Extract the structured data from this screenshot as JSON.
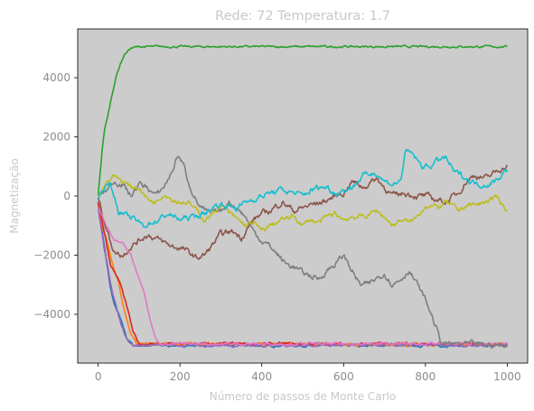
{
  "chart_data": {
    "type": "line",
    "title": "Rede: 72 Temperatura: 1.7",
    "xlabel": "Número de passos de Monte Carlo",
    "ylabel": "Magnetização",
    "xlim": [
      -50,
      1050
    ],
    "ylim": [
      -5650,
      5650
    ],
    "xticks": [
      0,
      200,
      400,
      600,
      800,
      1000
    ],
    "xtick_labels": [
      "0",
      "200",
      "400",
      "600",
      "800",
      "1000"
    ],
    "yticks": [
      -4000,
      -2000,
      0,
      2000,
      4000
    ],
    "ytick_labels": [
      "−4000",
      "−2000",
      "0",
      "2000",
      "4000"
    ],
    "grid": false,
    "background": "#cccccc",
    "series": [
      {
        "color": "#1f77b4",
        "noise": 40,
        "points": [
          [
            0,
            -200
          ],
          [
            10,
            -1200
          ],
          [
            20,
            -2200
          ],
          [
            30,
            -3100
          ],
          [
            40,
            -3700
          ],
          [
            50,
            -4000
          ],
          [
            60,
            -4400
          ],
          [
            70,
            -4800
          ],
          [
            85,
            -5050
          ],
          [
            1000,
            -5050
          ]
        ]
      },
      {
        "color": "#ff7f0e",
        "noise": 40,
        "points": [
          [
            0,
            -300
          ],
          [
            10,
            -1000
          ],
          [
            25,
            -1700
          ],
          [
            40,
            -2500
          ],
          [
            50,
            -2900
          ],
          [
            60,
            -3600
          ],
          [
            70,
            -4200
          ],
          [
            80,
            -4700
          ],
          [
            95,
            -5000
          ],
          [
            1000,
            -5020
          ]
        ]
      },
      {
        "color": "#2ca02c",
        "noise": 30,
        "points": [
          [
            0,
            0
          ],
          [
            5,
            800
          ],
          [
            10,
            1600
          ],
          [
            15,
            2200
          ],
          [
            25,
            2800
          ],
          [
            35,
            3500
          ],
          [
            45,
            4100
          ],
          [
            55,
            4500
          ],
          [
            65,
            4800
          ],
          [
            80,
            5000
          ],
          [
            100,
            5050
          ],
          [
            1000,
            5050
          ]
        ]
      },
      {
        "color": "#d62728",
        "noise": 40,
        "points": [
          [
            0,
            -200
          ],
          [
            15,
            -1200
          ],
          [
            30,
            -2300
          ],
          [
            45,
            -2700
          ],
          [
            55,
            -3000
          ],
          [
            65,
            -3500
          ],
          [
            75,
            -4000
          ],
          [
            85,
            -4600
          ],
          [
            100,
            -5000
          ],
          [
            1000,
            -5000
          ]
        ]
      },
      {
        "color": "#9467bd",
        "noise": 40,
        "points": [
          [
            0,
            -400
          ],
          [
            15,
            -1800
          ],
          [
            30,
            -2900
          ],
          [
            45,
            -3800
          ],
          [
            55,
            -4300
          ],
          [
            70,
            -4800
          ],
          [
            85,
            -5050
          ],
          [
            1000,
            -5050
          ]
        ]
      },
      {
        "color": "#8c564b",
        "noise": 90,
        "points": [
          [
            0,
            0
          ],
          [
            20,
            -1100
          ],
          [
            40,
            -1900
          ],
          [
            60,
            -2000
          ],
          [
            80,
            -1700
          ],
          [
            100,
            -1500
          ],
          [
            120,
            -1300
          ],
          [
            150,
            -1500
          ],
          [
            180,
            -1700
          ],
          [
            210,
            -1800
          ],
          [
            240,
            -2100
          ],
          [
            260,
            -2000
          ],
          [
            300,
            -1300
          ],
          [
            330,
            -1200
          ],
          [
            350,
            -1400
          ],
          [
            380,
            -800
          ],
          [
            400,
            -600
          ],
          [
            420,
            -500
          ],
          [
            450,
            -200
          ],
          [
            480,
            -500
          ],
          [
            500,
            -400
          ],
          [
            520,
            -300
          ],
          [
            550,
            -200
          ],
          [
            580,
            0
          ],
          [
            600,
            100
          ],
          [
            620,
            500
          ],
          [
            650,
            300
          ],
          [
            680,
            600
          ],
          [
            700,
            300
          ],
          [
            720,
            0
          ],
          [
            750,
            100
          ],
          [
            780,
            0
          ],
          [
            800,
            0
          ],
          [
            820,
            -100
          ],
          [
            850,
            -200
          ],
          [
            880,
            100
          ],
          [
            900,
            500
          ],
          [
            920,
            700
          ],
          [
            950,
            600
          ],
          [
            980,
            900
          ],
          [
            1000,
            1000
          ]
        ]
      },
      {
        "color": "#e377c2",
        "noise": 40,
        "points": [
          [
            0,
            -400
          ],
          [
            20,
            -1000
          ],
          [
            40,
            -1500
          ],
          [
            60,
            -1600
          ],
          [
            80,
            -2000
          ],
          [
            95,
            -2600
          ],
          [
            110,
            -3100
          ],
          [
            120,
            -3700
          ],
          [
            130,
            -4300
          ],
          [
            140,
            -4800
          ],
          [
            150,
            -5000
          ],
          [
            1000,
            -5000
          ]
        ]
      },
      {
        "color": "#7f7f7f",
        "noise": 90,
        "points": [
          [
            0,
            0
          ],
          [
            20,
            200
          ],
          [
            40,
            500
          ],
          [
            60,
            400
          ],
          [
            80,
            0
          ],
          [
            100,
            400
          ],
          [
            120,
            300
          ],
          [
            140,
            0
          ],
          [
            160,
            300
          ],
          [
            180,
            800
          ],
          [
            195,
            1400
          ],
          [
            210,
            1000
          ],
          [
            220,
            500
          ],
          [
            235,
            0
          ],
          [
            250,
            -400
          ],
          [
            270,
            -600
          ],
          [
            300,
            -500
          ],
          [
            320,
            -200
          ],
          [
            340,
            -400
          ],
          [
            360,
            -700
          ],
          [
            380,
            -1200
          ],
          [
            400,
            -1500
          ],
          [
            420,
            -1700
          ],
          [
            440,
            -2000
          ],
          [
            460,
            -2300
          ],
          [
            480,
            -2400
          ],
          [
            500,
            -2600
          ],
          [
            520,
            -2700
          ],
          [
            540,
            -2800
          ],
          [
            560,
            -2500
          ],
          [
            580,
            -2300
          ],
          [
            600,
            -2000
          ],
          [
            620,
            -2500
          ],
          [
            640,
            -3000
          ],
          [
            660,
            -3000
          ],
          [
            680,
            -2800
          ],
          [
            700,
            -2600
          ],
          [
            720,
            -3000
          ],
          [
            740,
            -2800
          ],
          [
            760,
            -2500
          ],
          [
            780,
            -3000
          ],
          [
            800,
            -3500
          ],
          [
            820,
            -4200
          ],
          [
            840,
            -5000
          ],
          [
            1000,
            -5050
          ]
        ]
      },
      {
        "color": "#bcbd22",
        "noise": 80,
        "points": [
          [
            0,
            0
          ],
          [
            20,
            500
          ],
          [
            40,
            700
          ],
          [
            60,
            500
          ],
          [
            80,
            300
          ],
          [
            100,
            300
          ],
          [
            120,
            -100
          ],
          [
            140,
            -200
          ],
          [
            160,
            100
          ],
          [
            180,
            -100
          ],
          [
            200,
            -200
          ],
          [
            220,
            -200
          ],
          [
            240,
            -500
          ],
          [
            260,
            -800
          ],
          [
            280,
            -600
          ],
          [
            300,
            -300
          ],
          [
            330,
            -700
          ],
          [
            360,
            -1000
          ],
          [
            380,
            -900
          ],
          [
            400,
            -1200
          ],
          [
            420,
            -1000
          ],
          [
            450,
            -800
          ],
          [
            480,
            -700
          ],
          [
            500,
            -1000
          ],
          [
            520,
            -800
          ],
          [
            540,
            -900
          ],
          [
            560,
            -700
          ],
          [
            580,
            -600
          ],
          [
            600,
            -800
          ],
          [
            620,
            -700
          ],
          [
            650,
            -700
          ],
          [
            680,
            -500
          ],
          [
            700,
            -700
          ],
          [
            720,
            -1000
          ],
          [
            740,
            -800
          ],
          [
            760,
            -900
          ],
          [
            780,
            -700
          ],
          [
            800,
            -300
          ],
          [
            830,
            -400
          ],
          [
            850,
            -200
          ],
          [
            880,
            -500
          ],
          [
            900,
            -300
          ],
          [
            930,
            -300
          ],
          [
            960,
            -100
          ],
          [
            980,
            -100
          ],
          [
            1000,
            -500
          ]
        ]
      },
      {
        "color": "#17becf",
        "noise": 90,
        "points": [
          [
            0,
            0
          ],
          [
            15,
            300
          ],
          [
            30,
            400
          ],
          [
            50,
            -500
          ],
          [
            70,
            -700
          ],
          [
            90,
            -800
          ],
          [
            110,
            -1000
          ],
          [
            130,
            -900
          ],
          [
            150,
            -800
          ],
          [
            170,
            -600
          ],
          [
            200,
            -800
          ],
          [
            230,
            -700
          ],
          [
            260,
            -600
          ],
          [
            290,
            -300
          ],
          [
            310,
            -300
          ],
          [
            340,
            -400
          ],
          [
            360,
            -200
          ],
          [
            380,
            -100
          ],
          [
            400,
            0
          ],
          [
            420,
            100
          ],
          [
            450,
            200
          ],
          [
            480,
            100
          ],
          [
            500,
            0
          ],
          [
            520,
            200
          ],
          [
            540,
            300
          ],
          [
            560,
            300
          ],
          [
            580,
            100
          ],
          [
            600,
            200
          ],
          [
            620,
            300
          ],
          [
            650,
            700
          ],
          [
            680,
            800
          ],
          [
            700,
            500
          ],
          [
            720,
            400
          ],
          [
            740,
            500
          ],
          [
            750,
            1500
          ],
          [
            770,
            1400
          ],
          [
            790,
            1000
          ],
          [
            810,
            1000
          ],
          [
            830,
            1200
          ],
          [
            850,
            1300
          ],
          [
            870,
            800
          ],
          [
            890,
            700
          ],
          [
            910,
            500
          ],
          [
            930,
            400
          ],
          [
            950,
            400
          ],
          [
            970,
            500
          ],
          [
            1000,
            900
          ]
        ]
      }
    ]
  }
}
